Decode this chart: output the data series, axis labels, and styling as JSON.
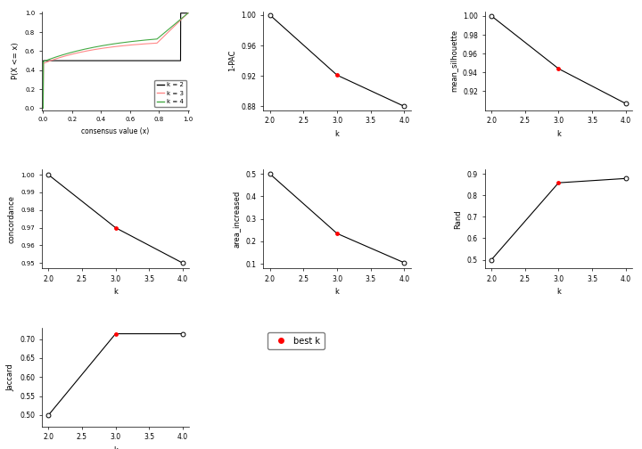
{
  "k_vals": [
    2,
    3,
    4
  ],
  "pac_1_vals": [
    1.0,
    0.921,
    0.88
  ],
  "silhouette_vals": [
    1.0,
    0.944,
    0.907
  ],
  "concordance_vals": [
    1.0,
    0.97,
    0.95
  ],
  "area_increased_vals": [
    0.5,
    0.235,
    0.105
  ],
  "rand_vals": [
    0.5,
    0.858,
    0.878
  ],
  "jaccard_vals": [
    0.5,
    0.714,
    0.714
  ],
  "best_k": 3,
  "color_k2": "#000000",
  "color_k3": "#FF8888",
  "color_k4": "#44AA44",
  "best_k_color": "red"
}
